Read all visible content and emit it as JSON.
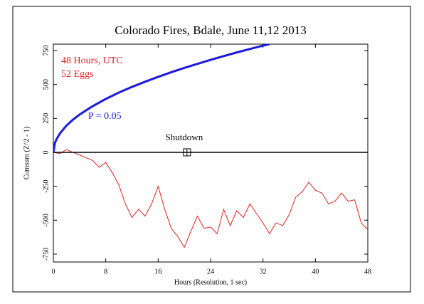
{
  "chart_data": {
    "type": "line",
    "title": "Colorado Fires, Bdale, June 11,12 2013",
    "xlabel": "Hours (Resolution, 1 sec)",
    "ylabel": "Cumsum (Z^2 - 1)",
    "xlim": [
      0,
      48
    ],
    "ylim": [
      -808,
      797
    ],
    "xticks": [
      0,
      8,
      16,
      24,
      32,
      40,
      48
    ],
    "yticks": [
      -750,
      -500,
      -250,
      0,
      250,
      500,
      750
    ],
    "annotations": [
      "48 Hours, UTC",
      "52 Eggs"
    ],
    "annotation_color": "#e02020",
    "baseline": 0,
    "shutdown": {
      "label": "Shutdown",
      "x": 20.4,
      "y": 0
    },
    "series": [
      {
        "name": "P = 0.05",
        "color": "#1a1adc",
        "x": [
          0,
          0.25,
          0.5,
          1,
          2,
          3,
          4,
          6,
          8,
          10,
          12,
          14,
          16,
          18,
          20,
          22,
          24,
          26,
          28,
          30,
          32,
          33
        ],
        "values": [
          0,
          70,
          98,
          139,
          197,
          241,
          278,
          340,
          393,
          440,
          482,
          520,
          556,
          590,
          622,
          652,
          681,
          709,
          736,
          761,
          786,
          797
        ]
      },
      {
        "color": "#e02020",
        "x": [
          0,
          1,
          2,
          3,
          4,
          5,
          6,
          7,
          8,
          9,
          10,
          11,
          12,
          13,
          14,
          15,
          16,
          17,
          18,
          19,
          20,
          21,
          22,
          23,
          24,
          25,
          26,
          27,
          28,
          29,
          30,
          31,
          32,
          33,
          34,
          35,
          36,
          37,
          38,
          39,
          40,
          41,
          42,
          43,
          44,
          45,
          46,
          47,
          48
        ],
        "values": [
          0,
          -10,
          20,
          0,
          -20,
          -40,
          -60,
          -110,
          -75,
          -150,
          -240,
          -380,
          -480,
          -420,
          -470,
          -380,
          -250,
          -420,
          -560,
          -620,
          -700,
          -580,
          -470,
          -560,
          -550,
          -600,
          -420,
          -540,
          -430,
          -480,
          -380,
          -450,
          -520,
          -600,
          -520,
          -540,
          -460,
          -330,
          -290,
          -220,
          -280,
          -300,
          -380,
          -360,
          -300,
          -360,
          -350,
          -520,
          -570
        ]
      }
    ]
  }
}
